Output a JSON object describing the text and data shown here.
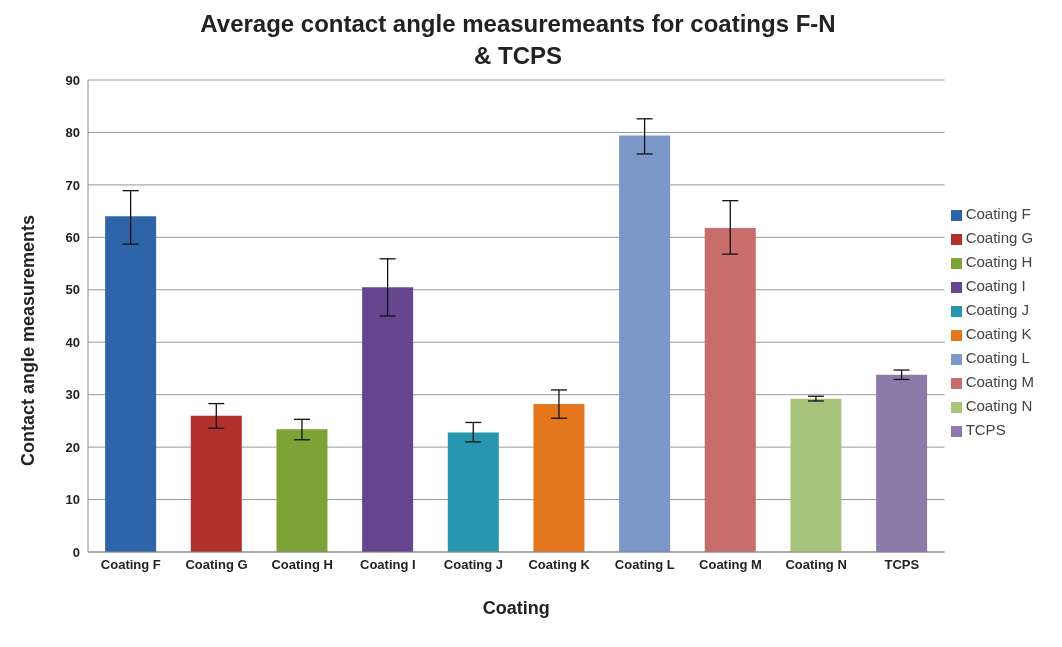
{
  "chart_data": {
    "type": "bar",
    "title": "Average contact angle measuremeants for coatings F-N & TCPS",
    "xlabel": "Coating",
    "ylabel": "Contact angle measurements",
    "categories": [
      "Coating F",
      "Coating G",
      "Coating H",
      "Coating I",
      "Coating J",
      "Coating K",
      "Coating L",
      "Coating M",
      "Coating N",
      "TCPS"
    ],
    "series": [
      {
        "name": "Coating F",
        "color": "#2e64a8",
        "values": [
          64.0,
          null,
          null,
          null,
          null,
          null,
          null,
          null,
          null,
          null
        ],
        "errors": [
          [
            58.7,
            68.9
          ],
          null,
          null,
          null,
          null,
          null,
          null,
          null,
          null,
          null
        ]
      },
      {
        "name": "Coating G",
        "color": "#b0302c",
        "values": [
          null,
          26.0,
          null,
          null,
          null,
          null,
          null,
          null,
          null,
          null
        ],
        "errors": [
          null,
          [
            23.6,
            28.3
          ],
          null,
          null,
          null,
          null,
          null,
          null,
          null,
          null
        ]
      },
      {
        "name": "Coating H",
        "color": "#7da236",
        "values": [
          null,
          null,
          23.4,
          null,
          null,
          null,
          null,
          null,
          null,
          null
        ],
        "errors": [
          null,
          null,
          [
            21.4,
            25.3
          ],
          null,
          null,
          null,
          null,
          null,
          null,
          null
        ]
      },
      {
        "name": "Coating I",
        "color": "#65468e",
        "values": [
          null,
          null,
          null,
          50.5,
          null,
          null,
          null,
          null,
          null,
          null
        ],
        "errors": [
          null,
          null,
          null,
          [
            45.0,
            55.9
          ],
          null,
          null,
          null,
          null,
          null,
          null
        ]
      },
      {
        "name": "Coating J",
        "color": "#2796ae",
        "values": [
          null,
          null,
          null,
          null,
          22.8,
          null,
          null,
          null,
          null,
          null
        ],
        "errors": [
          null,
          null,
          null,
          null,
          [
            21.0,
            24.7
          ],
          null,
          null,
          null,
          null,
          null
        ]
      },
      {
        "name": "Coating K",
        "color": "#e4761e",
        "values": [
          null,
          null,
          null,
          null,
          null,
          28.2,
          null,
          null,
          null,
          null
        ],
        "errors": [
          null,
          null,
          null,
          null,
          null,
          [
            25.5,
            30.9
          ],
          null,
          null,
          null,
          null
        ]
      },
      {
        "name": "Coating L",
        "color": "#7b98c8",
        "values": [
          null,
          null,
          null,
          null,
          null,
          null,
          79.4,
          null,
          null,
          null
        ],
        "errors": [
          null,
          null,
          null,
          null,
          null,
          null,
          [
            75.9,
            82.6
          ],
          null,
          null,
          null
        ]
      },
      {
        "name": "Coating M",
        "color": "#c86c6c",
        "values": [
          null,
          null,
          null,
          null,
          null,
          null,
          null,
          61.8,
          null,
          null
        ],
        "errors": [
          null,
          null,
          null,
          null,
          null,
          null,
          null,
          [
            56.8,
            67.0
          ],
          null,
          null
        ]
      },
      {
        "name": "Coating N",
        "color": "#a8c47c",
        "values": [
          null,
          null,
          null,
          null,
          null,
          null,
          null,
          null,
          29.2,
          null
        ],
        "errors": [
          null,
          null,
          null,
          null,
          null,
          null,
          null,
          null,
          [
            28.8,
            29.7
          ],
          null
        ]
      },
      {
        "name": "TCPS",
        "color": "#8e7aaa",
        "values": [
          null,
          null,
          null,
          null,
          null,
          null,
          null,
          null,
          null,
          33.8
        ],
        "errors": [
          null,
          null,
          null,
          null,
          null,
          null,
          null,
          null,
          null,
          [
            32.9,
            34.7
          ]
        ]
      }
    ],
    "stacked": true,
    "ylim": [
      0,
      90
    ],
    "yticks": [
      0,
      10,
      20,
      30,
      40,
      50,
      60,
      70,
      80,
      90
    ],
    "grid": "y",
    "legend": "right"
  }
}
